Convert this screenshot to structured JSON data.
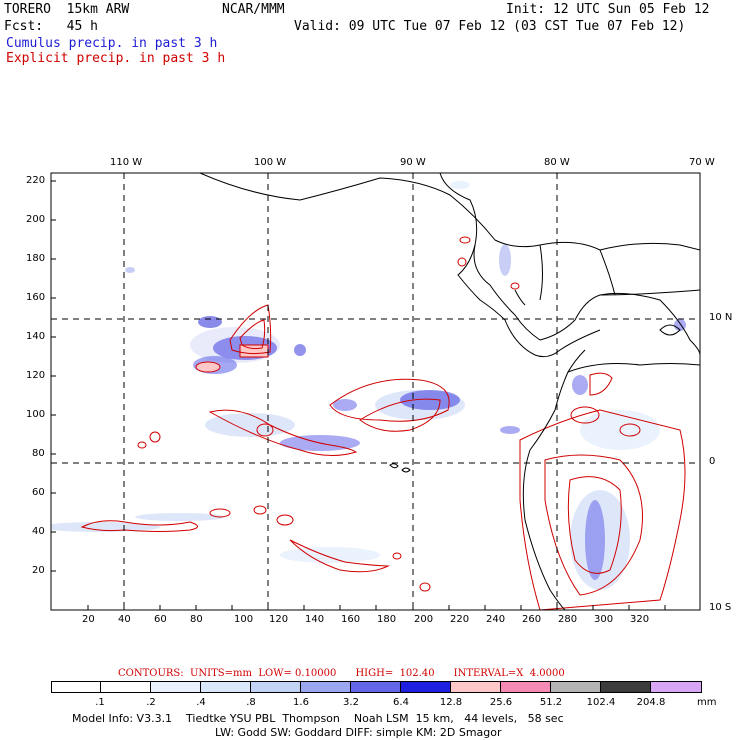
{
  "header": {
    "model": "TORERO  15km ARW",
    "org": "NCAR/MMM",
    "init": "Init: 12 UTC Sun 05 Feb 12",
    "fcst": "Fcst:   45 h",
    "valid": "Valid: 09 UTC Tue 07 Feb 12 (03 CST Tue 07 Feb 12)",
    "cumulus_label": "Cumulus precip. in past 3 h",
    "explicit_label": "Explicit precip. in past 3 h"
  },
  "axes": {
    "top_lon": [
      "110 W",
      "100 W",
      "90 W",
      "80 W",
      "70 W"
    ],
    "right_lat": [
      "10 N",
      "0",
      "10 S"
    ],
    "y_ticks": [
      "220",
      "200",
      "180",
      "160",
      "140",
      "120",
      "100",
      "80",
      "60",
      "40",
      "20"
    ],
    "x_ticks": [
      "20",
      "40",
      "60",
      "80",
      "100",
      "120",
      "140",
      "160",
      "180",
      "200",
      "220",
      "240",
      "260",
      "280",
      "300",
      "320"
    ]
  },
  "contours": {
    "label": "CONTOURS:  UNITS=mm  LOW= 0.10000      HIGH=  102.40      INTERVAL=X  4.0000"
  },
  "colorbar": {
    "labels": [
      ".1",
      ".2",
      ".4",
      ".8",
      "1.6",
      "3.2",
      "6.4",
      "12.8",
      "25.6",
      "51.2",
      "102.4",
      "204.8"
    ],
    "units": "mm",
    "colors": [
      "#ffffff",
      "#ffffff",
      "#eaf2ff",
      "#d9e8fb",
      "#c3d3f5",
      "#9aa6ef",
      "#6466e8",
      "#1f1fe0",
      "#ffc8c8",
      "#f58ab5",
      "#b4b4b4",
      "#3c3c3c",
      "#d7a6f5"
    ]
  },
  "model_info": {
    "line1": "Model Info: V3.3.1    Tiedtke YSU PBL  Thompson    Noah LSM  15 km,   44 levels,   58 sec",
    "line2": "LW: Godd SW: Goddard DIFF: simple KM: 2D Smagor"
  }
}
